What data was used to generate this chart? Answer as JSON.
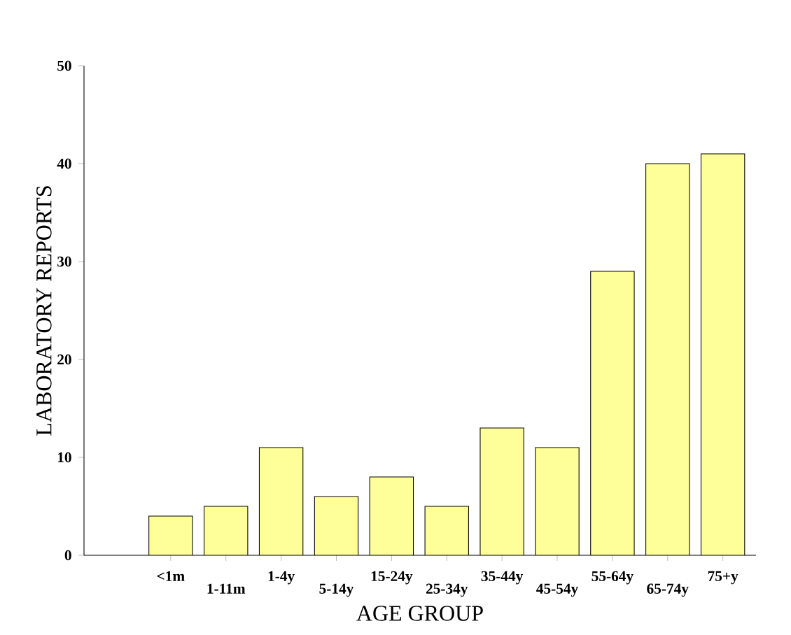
{
  "chart_data": {
    "type": "bar",
    "xlabel": "AGE GROUP",
    "ylabel": "LABORATORY REPORTS",
    "categories": [
      "<1m",
      "1-11m",
      "1-4y",
      "5-14y",
      "15-24y",
      "25-34y",
      "35-44y",
      "45-54y",
      "55-64y",
      "65-74y",
      "75+y"
    ],
    "values": [
      4,
      5,
      11,
      6,
      8,
      5,
      13,
      11,
      29,
      40,
      41
    ],
    "color": "#ffff99",
    "ylim": [
      0,
      50
    ],
    "yticks": [
      0,
      10,
      20,
      30,
      40,
      50
    ],
    "grid": false
  }
}
